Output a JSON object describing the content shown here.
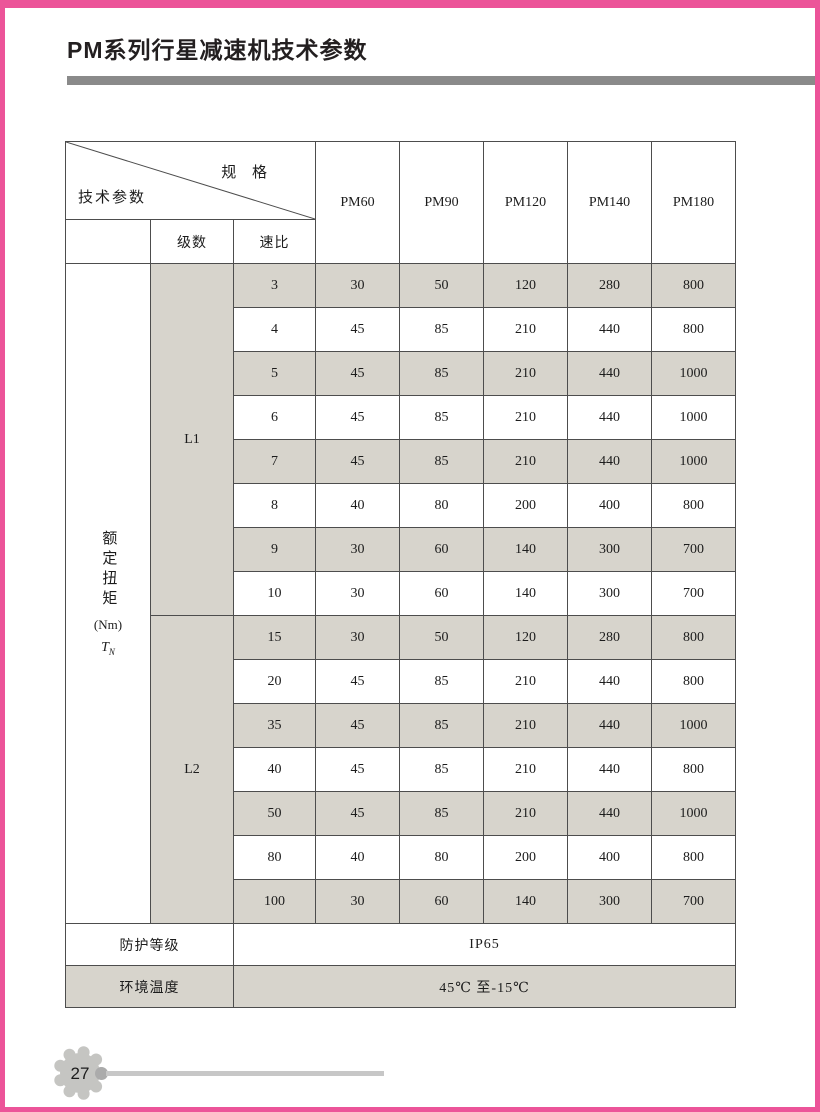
{
  "page": {
    "title": "PM系列行星减速机技术参数",
    "page_number": "27"
  },
  "table": {
    "corner": {
      "top_right_label": "规 格",
      "bottom_left_label": "技术参数"
    },
    "columns": [
      "PM60",
      "PM90",
      "PM120",
      "PM140",
      "PM180"
    ],
    "subheaders": {
      "stage": "级数",
      "ratio": "速比"
    },
    "row_label": {
      "vertical_chars": "额定扭矩",
      "unit": "(Nm)",
      "symbol": "T",
      "symbol_sub": "N"
    },
    "groups": [
      {
        "label": "L1",
        "span": 8
      },
      {
        "label": "L2",
        "span": 7
      }
    ],
    "rows": [
      {
        "group": "L1",
        "ratio": "3",
        "values": [
          "30",
          "50",
          "120",
          "280",
          "800"
        ]
      },
      {
        "group": "L1",
        "ratio": "4",
        "values": [
          "45",
          "85",
          "210",
          "440",
          "800"
        ]
      },
      {
        "group": "L1",
        "ratio": "5",
        "values": [
          "45",
          "85",
          "210",
          "440",
          "1000"
        ]
      },
      {
        "group": "L1",
        "ratio": "6",
        "values": [
          "45",
          "85",
          "210",
          "440",
          "1000"
        ]
      },
      {
        "group": "L1",
        "ratio": "7",
        "values": [
          "45",
          "85",
          "210",
          "440",
          "1000"
        ]
      },
      {
        "group": "L1",
        "ratio": "8",
        "values": [
          "40",
          "80",
          "200",
          "400",
          "800"
        ]
      },
      {
        "group": "L1",
        "ratio": "9",
        "values": [
          "30",
          "60",
          "140",
          "300",
          "700"
        ]
      },
      {
        "group": "L1",
        "ratio": "10",
        "values": [
          "30",
          "60",
          "140",
          "300",
          "700"
        ]
      },
      {
        "group": "L2",
        "ratio": "15",
        "values": [
          "30",
          "50",
          "120",
          "280",
          "800"
        ]
      },
      {
        "group": "L2",
        "ratio": "20",
        "values": [
          "45",
          "85",
          "210",
          "440",
          "800"
        ]
      },
      {
        "group": "L2",
        "ratio": "35",
        "values": [
          "45",
          "85",
          "210",
          "440",
          "1000"
        ]
      },
      {
        "group": "L2",
        "ratio": "40",
        "values": [
          "45",
          "85",
          "210",
          "440",
          "800"
        ]
      },
      {
        "group": "L2",
        "ratio": "50",
        "values": [
          "45",
          "85",
          "210",
          "440",
          "1000"
        ]
      },
      {
        "group": "L2",
        "ratio": "80",
        "values": [
          "40",
          "80",
          "200",
          "400",
          "800"
        ]
      },
      {
        "group": "L2",
        "ratio": "100",
        "values": [
          "30",
          "60",
          "140",
          "300",
          "700"
        ]
      }
    ],
    "footer_rows": [
      {
        "label": "防护等级",
        "value": "IP65"
      },
      {
        "label": "环境温度",
        "value": "45℃ 至-15℃"
      }
    ]
  },
  "colors": {
    "frame_pink": "#ec5499",
    "title_rule_gray": "#8a8a8a",
    "row_shade": "#d7d4cc",
    "table_line": "#4d4d4d",
    "footer_line_gray": "#c7c7c7",
    "gear_badge_gray": "#c5c5c2"
  }
}
